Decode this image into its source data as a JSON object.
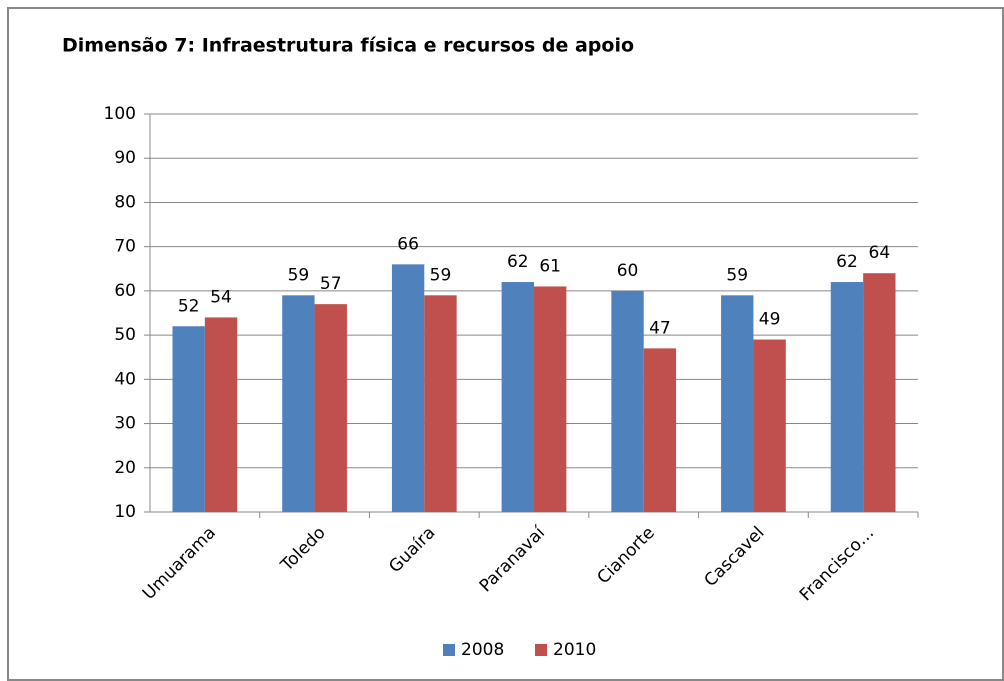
{
  "chart_data": {
    "type": "bar",
    "title": "Dimensão 7: Infraestrutura física e recursos de apoio",
    "categories": [
      "Umuarama",
      "Toledo",
      "Guaíra",
      "Paranavaí",
      "Cianorte",
      "Cascavel",
      "Francisco…"
    ],
    "series": [
      {
        "name": "2008",
        "color": "#4f81bd",
        "values": [
          52,
          59,
          66,
          62,
          60,
          59,
          62
        ]
      },
      {
        "name": "2010",
        "color": "#c0504d",
        "values": [
          54,
          57,
          59,
          61,
          47,
          49,
          64
        ]
      }
    ],
    "ylim": [
      10,
      100
    ],
    "yticks": [
      10,
      20,
      30,
      40,
      50,
      60,
      70,
      80,
      90,
      100
    ],
    "grid": true,
    "legend": "bottom"
  }
}
